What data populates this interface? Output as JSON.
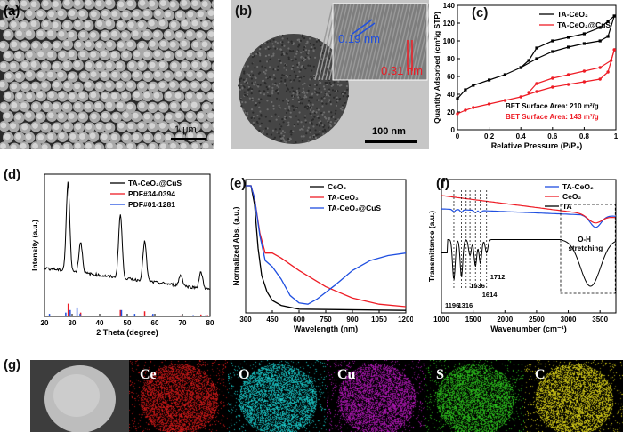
{
  "panels": {
    "a": {
      "label": "(a)",
      "scalebar": "1 μm"
    },
    "b": {
      "label": "(b)",
      "scalebar": "100 nm",
      "d1": "0.19 nm",
      "d2": "0.31 nm"
    },
    "c": {
      "label": "(c)"
    },
    "d": {
      "label": "(d)"
    },
    "e": {
      "label": "(e)"
    },
    "f": {
      "label": "(f)"
    },
    "g": {
      "label": "(g)",
      "elements": [
        "Ce",
        "O",
        "Cu",
        "S",
        "C"
      ]
    }
  },
  "colors": {
    "black": "#000000",
    "red": "#ee1c25",
    "blue": "#1f4fe0",
    "ce": "#e11a1a",
    "o": "#1bd6d6",
    "cu": "#c01ac6",
    "s": "#2fcf1f",
    "c": "#e8df1a"
  },
  "chart_data": [
    {
      "id": "c",
      "type": "line",
      "xlabel": "Relative Pressure (P/P₀)",
      "ylabel": "Quantity Adsorbed (cm³/g STP)",
      "xlim": [
        0,
        1.0
      ],
      "ylim": [
        0,
        140
      ],
      "xticks": [
        0.0,
        0.2,
        0.4,
        0.6,
        0.8,
        1.0
      ],
      "yticks": [
        0,
        20,
        40,
        60,
        80,
        100,
        120,
        140
      ],
      "series": [
        {
          "name": "TA-CeO₂",
          "color": "#000000",
          "adsorption": [
            [
              0.0,
              35
            ],
            [
              0.05,
              45
            ],
            [
              0.1,
              50
            ],
            [
              0.2,
              56
            ],
            [
              0.3,
              62
            ],
            [
              0.4,
              70
            ],
            [
              0.5,
              80
            ],
            [
              0.6,
              88
            ],
            [
              0.7,
              93
            ],
            [
              0.8,
              97
            ],
            [
              0.9,
              100
            ],
            [
              0.95,
              105
            ],
            [
              0.99,
              128
            ]
          ],
          "desorption": [
            [
              0.99,
              128
            ],
            [
              0.95,
              122
            ],
            [
              0.9,
              115
            ],
            [
              0.8,
              108
            ],
            [
              0.7,
              104
            ],
            [
              0.6,
              100
            ],
            [
              0.5,
              92
            ],
            [
              0.45,
              78
            ],
            [
              0.4,
              70
            ]
          ]
        },
        {
          "name": "TA-CeO₂@CuS",
          "color": "#ee1c25",
          "adsorption": [
            [
              0.0,
              18
            ],
            [
              0.05,
              22
            ],
            [
              0.1,
              25
            ],
            [
              0.2,
              29
            ],
            [
              0.3,
              33
            ],
            [
              0.4,
              37
            ],
            [
              0.5,
              43
            ],
            [
              0.6,
              48
            ],
            [
              0.7,
              51
            ],
            [
              0.8,
              54
            ],
            [
              0.9,
              57
            ],
            [
              0.95,
              65
            ],
            [
              0.99,
              90
            ]
          ],
          "desorption": [
            [
              0.99,
              90
            ],
            [
              0.97,
              78
            ],
            [
              0.9,
              70
            ],
            [
              0.8,
              66
            ],
            [
              0.7,
              62
            ],
            [
              0.6,
              58
            ],
            [
              0.5,
              52
            ],
            [
              0.45,
              42
            ]
          ]
        }
      ],
      "annotations": [
        {
          "text": "BET Surface Area: 210 m²/g",
          "color": "#000000"
        },
        {
          "text": "BET Surface Area: 143 m²/g",
          "color": "#ee1c25"
        }
      ]
    },
    {
      "id": "d",
      "type": "line",
      "xlabel": "2 Theta (degree)",
      "ylabel": "Intensity (a.u.)",
      "xlim": [
        20,
        80
      ],
      "xticks": [
        20,
        30,
        40,
        50,
        60,
        70,
        80
      ],
      "series": [
        {
          "name": "TA-CeO₂@CuS",
          "color": "#000000",
          "peaks": [
            [
              28.5,
              1.0
            ],
            [
              33.1,
              0.35
            ],
            [
              47.5,
              0.72
            ],
            [
              56.3,
              0.45
            ],
            [
              69.4,
              0.12
            ],
            [
              76.7,
              0.18
            ]
          ]
        },
        {
          "name": "PDF#34-0394",
          "color": "#ee1c25",
          "sticks": [
            [
              28.6,
              1.0
            ],
            [
              33.1,
              0.3
            ],
            [
              47.5,
              0.5
            ],
            [
              56.3,
              0.4
            ],
            [
              59.1,
              0.1
            ],
            [
              69.4,
              0.08
            ],
            [
              76.7,
              0.15
            ],
            [
              79.1,
              0.1
            ]
          ]
        },
        {
          "name": "PDF#01-1281",
          "color": "#1f4fe0",
          "sticks": [
            [
              21.8,
              0.2
            ],
            [
              27.7,
              0.3
            ],
            [
              29.3,
              0.5
            ],
            [
              31.8,
              0.7
            ],
            [
              32.9,
              0.2
            ],
            [
              47.9,
              0.5
            ],
            [
              52.7,
              0.2
            ],
            [
              59.3,
              0.2
            ],
            [
              73.9,
              0.1
            ],
            [
              78.5,
              0.1
            ]
          ]
        }
      ]
    },
    {
      "id": "e",
      "type": "line",
      "xlabel": "Wavelength (nm)",
      "ylabel": "Normalized Abs. (a.u.)",
      "xlim": [
        300,
        1200
      ],
      "xticks": [
        300,
        450,
        600,
        750,
        900,
        1050,
        1200
      ],
      "series": [
        {
          "name": "CeO₂",
          "color": "#000000",
          "points": [
            [
              300,
              1.0
            ],
            [
              330,
              1.0
            ],
            [
              350,
              0.85
            ],
            [
              370,
              0.5
            ],
            [
              390,
              0.28
            ],
            [
              420,
              0.15
            ],
            [
              450,
              0.08
            ],
            [
              500,
              0.04
            ],
            [
              600,
              0.01
            ],
            [
              1200,
              0.0
            ]
          ]
        },
        {
          "name": "TA-CeO₂",
          "color": "#ee1c25",
          "points": [
            [
              300,
              1.0
            ],
            [
              330,
              1.0
            ],
            [
              350,
              0.9
            ],
            [
              380,
              0.62
            ],
            [
              410,
              0.46
            ],
            [
              450,
              0.46
            ],
            [
              500,
              0.42
            ],
            [
              600,
              0.32
            ],
            [
              750,
              0.19
            ],
            [
              900,
              0.1
            ],
            [
              1050,
              0.05
            ],
            [
              1200,
              0.03
            ]
          ]
        },
        {
          "name": "TA-CeO₂@CuS",
          "color": "#1f4fe0",
          "points": [
            [
              300,
              1.0
            ],
            [
              330,
              1.0
            ],
            [
              350,
              0.9
            ],
            [
              380,
              0.6
            ],
            [
              410,
              0.4
            ],
            [
              450,
              0.35
            ],
            [
              500,
              0.25
            ],
            [
              550,
              0.12
            ],
            [
              600,
              0.06
            ],
            [
              650,
              0.05
            ],
            [
              700,
              0.09
            ],
            [
              800,
              0.2
            ],
            [
              900,
              0.32
            ],
            [
              1000,
              0.4
            ],
            [
              1100,
              0.44
            ],
            [
              1200,
              0.46
            ]
          ]
        }
      ]
    },
    {
      "id": "f",
      "type": "line",
      "xlabel": "Wavenumber (cm⁻¹)",
      "ylabel": "Transmittance (a.u.)",
      "xlim": [
        1000,
        3750
      ],
      "xticks": [
        1000,
        1500,
        2000,
        2500,
        3000,
        3500
      ],
      "series": [
        {
          "name": "TA-CeO₂",
          "color": "#1f4fe0"
        },
        {
          "name": "CeO₂",
          "color": "#ee1c25"
        },
        {
          "name": "TA",
          "color": "#000000"
        }
      ],
      "annotations": [
        "1196",
        "1316",
        "1536",
        "1614",
        "1712",
        "O-H",
        "stretching"
      ]
    }
  ]
}
